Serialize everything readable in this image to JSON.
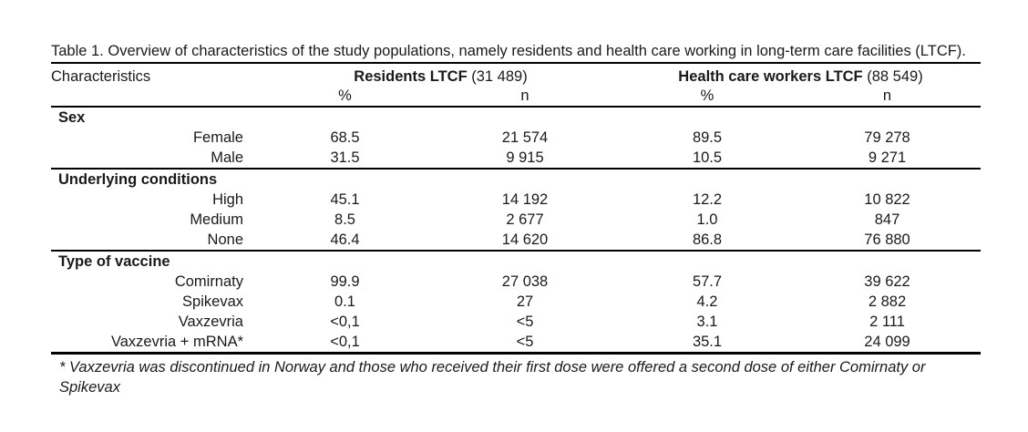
{
  "colors": {
    "text": "#1a1a1a",
    "rule": "#000000",
    "background": "#ffffff"
  },
  "title": "Table 1. Overview of characteristics of the study populations, namely residents and health care working in long-term care facilities (LTCF).",
  "table": {
    "col_header": "Characteristics",
    "groups": [
      {
        "label": "Residents LTCF",
        "count": "(31 489)"
      },
      {
        "label": "Health care workers LTCF",
        "count": "(88 549)"
      }
    ],
    "subheaders": [
      "%",
      "n",
      "%",
      "n"
    ],
    "sections": [
      {
        "name": "Sex",
        "rows": [
          {
            "label": "Female",
            "values": [
              "68.5",
              "21 574",
              "89.5",
              "79 278"
            ]
          },
          {
            "label": "Male",
            "values": [
              "31.5",
              "9 915",
              "10.5",
              "9 271"
            ]
          }
        ]
      },
      {
        "name": "Underlying conditions",
        "rows": [
          {
            "label": "High",
            "values": [
              "45.1",
              "14 192",
              "12.2",
              "10 822"
            ]
          },
          {
            "label": "Medium",
            "values": [
              "8.5",
              "2 677",
              "1.0",
              "847"
            ]
          },
          {
            "label": "None",
            "values": [
              "46.4",
              "14 620",
              "86.8",
              "76 880"
            ]
          }
        ]
      },
      {
        "name": "Type of vaccine",
        "rows": [
          {
            "label": "Comirnaty",
            "values": [
              "99.9",
              "27 038",
              "57.7",
              "39 622"
            ]
          },
          {
            "label": "Spikevax",
            "values": [
              "0.1",
              "27",
              "4.2",
              "2 882"
            ]
          },
          {
            "label": "Vaxzevria",
            "values": [
              "<0,1",
              "<5",
              "3.1",
              "2 111"
            ]
          },
          {
            "label": "Vaxzevria + mRNA*",
            "values": [
              "<0,1",
              "<5",
              "35.1",
              "24 099"
            ]
          }
        ]
      }
    ]
  },
  "footnote": "* Vaxzevria was discontinued in Norway and those who received their first dose were offered a second dose of either Comirnaty or Spikevax"
}
